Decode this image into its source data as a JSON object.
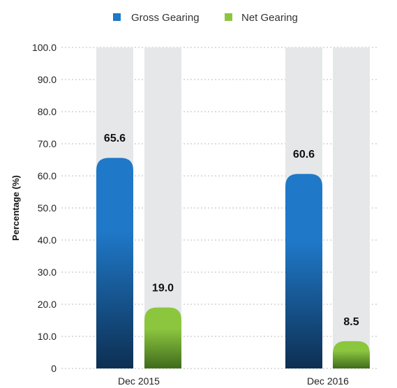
{
  "chart_data": {
    "type": "bar",
    "categories": [
      "Dec 2015",
      "Dec 2016"
    ],
    "series": [
      {
        "name": "Gross Gearing",
        "values": [
          65.6,
          60.6
        ]
      },
      {
        "name": "Net Gearing",
        "values": [
          19.0,
          8.5
        ]
      }
    ],
    "value_labels": [
      [
        "65.6",
        "60.6"
      ],
      [
        "19.0",
        "8.5"
      ]
    ],
    "ylabel": "Percentage (%)",
    "xlabel": "",
    "ylim": [
      0,
      100
    ],
    "yticks": [
      "0",
      "10.0",
      "20.0",
      "30.0",
      "40.0",
      "50.0",
      "60.0",
      "70.0",
      "80.0",
      "90.0",
      "100.0"
    ],
    "grid": true,
    "legend_position": "top-center"
  },
  "colors": {
    "gross_gearing_legend": "#1f78c8",
    "gross_gearing_top": "#1f78c8",
    "gross_gearing_bottom": "#0d2f52",
    "net_gearing_legend": "#8cc63f",
    "net_gearing_top": "#8cc63f",
    "net_gearing_bottom": "#3f6b1c",
    "bar_track": "#e6e7e8",
    "grid": "#bbbbbb"
  }
}
